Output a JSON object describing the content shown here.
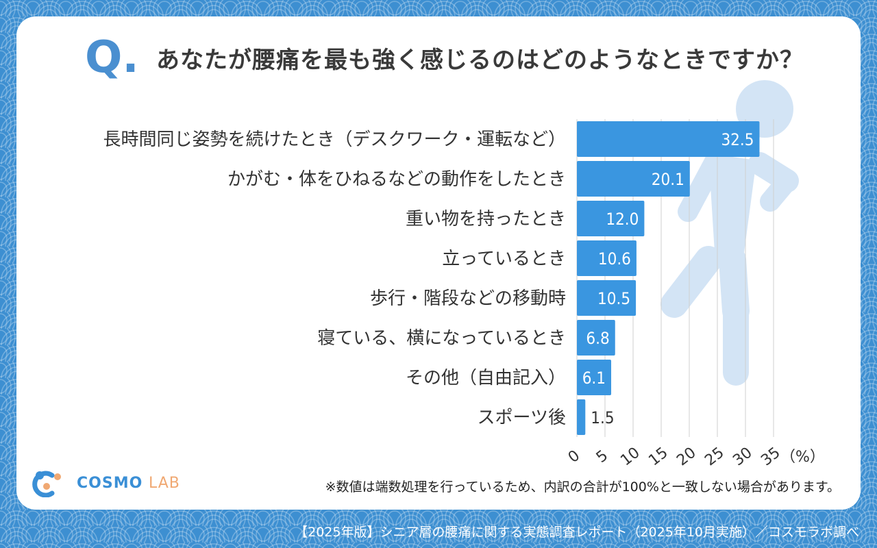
{
  "header": {
    "q_mark": "Q.",
    "question": "あなたが腰痛を最も強く感じるのはどのようなときですか？"
  },
  "chart_data": {
    "type": "bar",
    "orientation": "horizontal",
    "categories": [
      "長時間同じ姿勢を続けたとき（デスクワーク・運転など）",
      "かがむ・体をひねるなどの動作をしたとき",
      "重い物を持ったとき",
      "立っているとき",
      "歩行・階段などの移動時",
      "寝ている、横になっているとき",
      "その他（自由記入）",
      "スポーツ後"
    ],
    "values": [
      32.5,
      20.1,
      12.0,
      10.6,
      10.5,
      6.8,
      6.1,
      1.5
    ],
    "value_labels": [
      "32.5",
      "20.1",
      "12.0",
      "10.6",
      "10.5",
      "6.8",
      "6.1",
      "1.5"
    ],
    "xlim": [
      0,
      35
    ],
    "x_ticks": [
      "0",
      "5",
      "10",
      "15",
      "20",
      "25",
      "30",
      "35"
    ],
    "unit_label": "（%）",
    "grid": true,
    "bar_color": "#3a96e0"
  },
  "logo": {
    "name_main": "COSMO",
    "name_sub": "LAB"
  },
  "note": "※数値は端数処理を行っているため、内訳の合計が100%と一致しない場合があります。",
  "footer": "【2025年版】シニア層の腰痛に関する実態調査レポート（2025年10月実施）／コスモラボ調べ",
  "colors": {
    "background": "#3d8fd1",
    "accent": "#4a8fd0",
    "person_silhouette": "#d3e4f5"
  }
}
